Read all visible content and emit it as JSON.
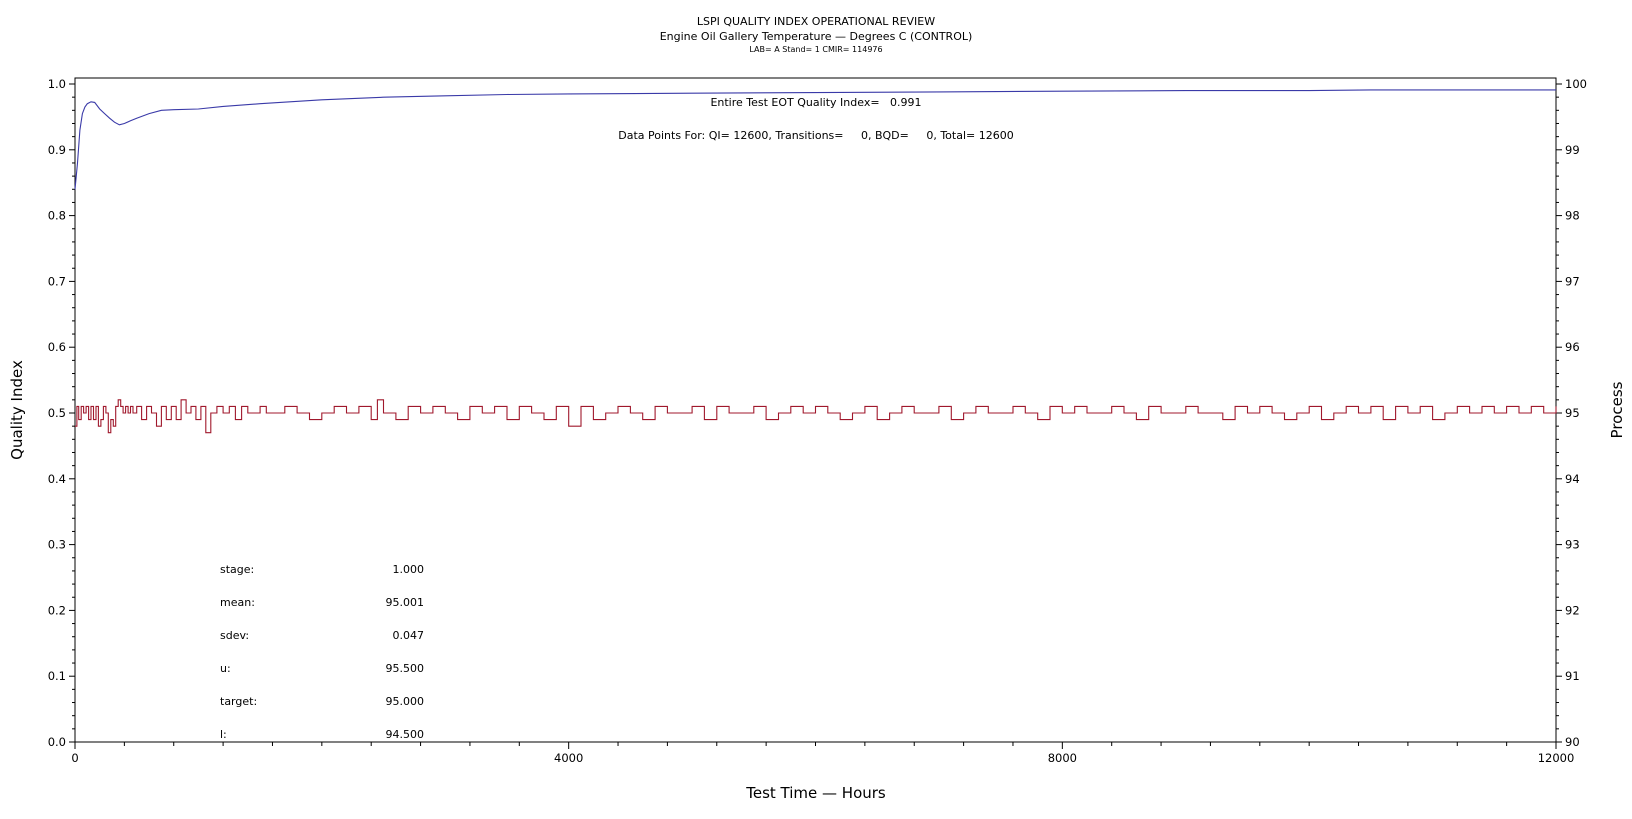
{
  "chart_data": {
    "type": "line",
    "title": "LSPI QUALITY INDEX OPERATIONAL REVIEW",
    "subtitle": "Engine Oil Gallery Temperature — Degrees C (CONTROL)",
    "subtitle2": "LAB= A Stand= 1 CMIR= 114976",
    "xlabel": "Test Time — Hours",
    "ylabel": "Quality Index",
    "y2label": "Process",
    "xlim": [
      0,
      12000
    ],
    "ylim": [
      0.0,
      1.0
    ],
    "y2lim": [
      90,
      100
    ],
    "x_ticks": [
      0,
      4000,
      8000,
      12000
    ],
    "y_ticks": [
      0.0,
      0.1,
      0.2,
      0.3,
      0.4,
      0.5,
      0.6,
      0.7,
      0.8,
      0.9,
      1.0
    ],
    "y2_ticks": [
      90,
      91,
      92,
      93,
      94,
      95,
      96,
      97,
      98,
      99,
      100
    ],
    "annotation_qi": "Entire Test EOT Quality Index=   0.991",
    "annotation_points": "Data Points For: QI= 12600, Transitions=     0, BQD=     0, Total= 12600",
    "stats": [
      {
        "label": "stage:",
        "value": "1.000"
      },
      {
        "label": "mean:",
        "value": "95.001"
      },
      {
        "label": "sdev:",
        "value": "0.047"
      },
      {
        "label": "u:",
        "value": "95.500"
      },
      {
        "label": "target:",
        "value": "95.000"
      },
      {
        "label": "l:",
        "value": "94.500"
      }
    ],
    "series": [
      {
        "axis": "left",
        "color": "#3a3aa8",
        "x": [
          0,
          20,
          40,
          60,
          80,
          100,
          130,
          160,
          200,
          240,
          280,
          320,
          360,
          400,
          450,
          500,
          600,
          700,
          800,
          1000,
          1200,
          1500,
          2000,
          2500,
          3000,
          3500,
          4000,
          5000,
          6000,
          7000,
          8000,
          9000,
          10000,
          10500,
          11000,
          12000
        ],
        "y": [
          0.84,
          0.88,
          0.93,
          0.955,
          0.965,
          0.97,
          0.973,
          0.972,
          0.962,
          0.955,
          0.948,
          0.942,
          0.938,
          0.94,
          0.944,
          0.948,
          0.955,
          0.96,
          0.961,
          0.962,
          0.966,
          0.97,
          0.976,
          0.98,
          0.982,
          0.984,
          0.985,
          0.986,
          0.987,
          0.988,
          0.989,
          0.99,
          0.99,
          0.991,
          0.991,
          0.991
        ]
      },
      {
        "axis": "right",
        "color": "#a0182c",
        "x": [
          0,
          15,
          30,
          50,
          70,
          90,
          110,
          130,
          150,
          170,
          190,
          210,
          230,
          250,
          270,
          290,
          310,
          330,
          350,
          370,
          390,
          410,
          430,
          450,
          470,
          500,
          540,
          580,
          620,
          660,
          700,
          740,
          780,
          820,
          860,
          900,
          940,
          980,
          1020,
          1060,
          1100,
          1150,
          1200,
          1250,
          1300,
          1350,
          1400,
          1500,
          1550,
          1600,
          1700,
          1800,
          1900,
          2000,
          2100,
          2200,
          2300,
          2400,
          2450,
          2500,
          2600,
          2700,
          2800,
          2900,
          3000,
          3100,
          3200,
          3300,
          3400,
          3500,
          3600,
          3700,
          3800,
          3900,
          4000,
          4100,
          4200,
          4300,
          4400,
          4500,
          4600,
          4700,
          4800,
          4900,
          5000,
          5100,
          5200,
          5300,
          5400,
          5500,
          5600,
          5700,
          5800,
          5900,
          6000,
          6100,
          6200,
          6300,
          6400,
          6500,
          6600,
          6700,
          6800,
          6900,
          7000,
          7100,
          7200,
          7300,
          7400,
          7500,
          7600,
          7700,
          7800,
          7900,
          8000,
          8100,
          8200,
          8300,
          8400,
          8500,
          8600,
          8700,
          8800,
          8900,
          9000,
          9100,
          9200,
          9300,
          9400,
          9500,
          9600,
          9700,
          9800,
          9900,
          10000,
          10100,
          10200,
          10300,
          10400,
          10500,
          10600,
          10700,
          10800,
          10900,
          11000,
          11100,
          11200,
          11300,
          11400,
          11500,
          11600,
          11700,
          11800,
          11900,
          12000
        ],
        "y": [
          94.8,
          95.1,
          94.9,
          95.1,
          95.0,
          95.1,
          94.9,
          95.1,
          94.9,
          95.1,
          94.8,
          94.9,
          95.1,
          95.0,
          94.7,
          94.9,
          94.8,
          95.1,
          95.2,
          95.1,
          95.0,
          95.1,
          95.0,
          95.1,
          95.0,
          95.1,
          94.9,
          95.1,
          95.0,
          94.8,
          95.1,
          94.9,
          95.1,
          94.9,
          95.2,
          95.0,
          95.1,
          94.9,
          95.1,
          94.7,
          95.0,
          95.1,
          95.0,
          95.1,
          94.9,
          95.1,
          95.0,
          95.1,
          95.0,
          95.0,
          95.1,
          95.0,
          94.9,
          95.0,
          95.1,
          95.0,
          95.1,
          94.9,
          95.2,
          95.0,
          94.9,
          95.1,
          95.0,
          95.1,
          95.0,
          94.9,
          95.1,
          95.0,
          95.1,
          94.9,
          95.1,
          95.0,
          94.9,
          95.1,
          94.8,
          95.1,
          94.9,
          95.0,
          95.1,
          95.0,
          94.9,
          95.1,
          95.0,
          95.0,
          95.1,
          94.9,
          95.1,
          95.0,
          95.0,
          95.1,
          94.9,
          95.0,
          95.1,
          95.0,
          95.1,
          95.0,
          94.9,
          95.0,
          95.1,
          94.9,
          95.0,
          95.1,
          95.0,
          95.0,
          95.1,
          94.9,
          95.0,
          95.1,
          95.0,
          95.0,
          95.1,
          95.0,
          94.9,
          95.1,
          95.0,
          95.1,
          95.0,
          95.0,
          95.1,
          95.0,
          94.9,
          95.1,
          95.0,
          95.0,
          95.1,
          95.0,
          95.0,
          94.9,
          95.1,
          95.0,
          95.1,
          95.0,
          94.9,
          95.0,
          95.1,
          94.9,
          95.0,
          95.1,
          95.0,
          95.1,
          94.9,
          95.1,
          95.0,
          95.1,
          94.9,
          95.0,
          95.1,
          95.0,
          95.1,
          95.0,
          95.1,
          95.0,
          95.1,
          95.0,
          95.1
        ]
      }
    ]
  }
}
